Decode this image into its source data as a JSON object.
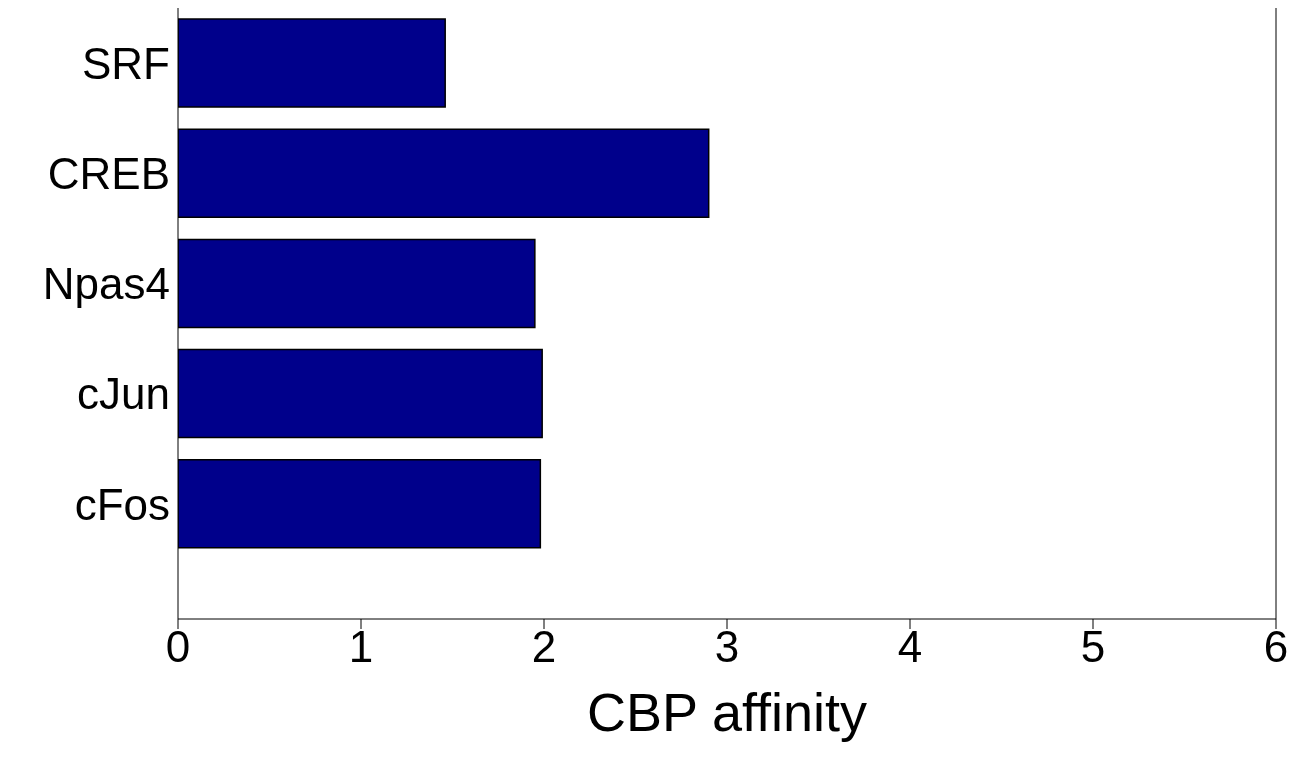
{
  "chart_data": {
    "type": "bar",
    "orientation": "horizontal",
    "xlabel": "CBP affinity",
    "categories": [
      "SRF",
      "CREB",
      "Npas4",
      "cJun",
      "cFos"
    ],
    "values": [
      1.46,
      2.9,
      1.95,
      1.99,
      1.98
    ],
    "color": "#00008b",
    "xlim": [
      0,
      6
    ],
    "xticks": [
      0,
      1,
      2,
      3,
      4,
      5,
      6
    ],
    "grid": false
  }
}
